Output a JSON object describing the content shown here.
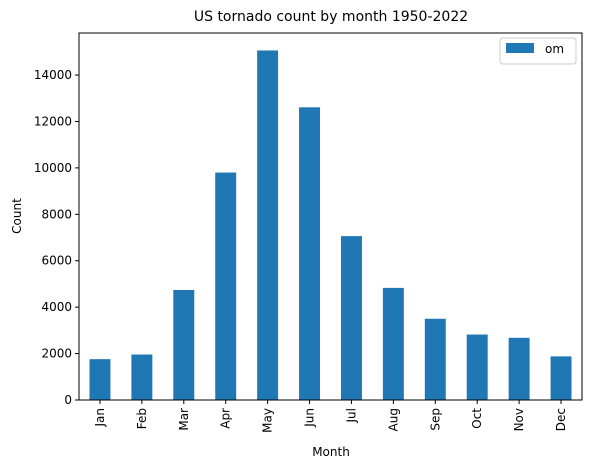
{
  "chart_data": {
    "type": "bar",
    "title": "US tornado count by month 1950-2022",
    "xlabel": "Month",
    "ylabel": "Count",
    "categories": [
      "Jan",
      "Feb",
      "Mar",
      "Apr",
      "May",
      "Jun",
      "Jul",
      "Aug",
      "Sep",
      "Oct",
      "Nov",
      "Dec"
    ],
    "series": [
      {
        "name": "om",
        "color": "#1f77b4",
        "values": [
          1760,
          1960,
          4740,
          9800,
          15060,
          12610,
          7060,
          4830,
          3500,
          2820,
          2680,
          1880
        ]
      }
    ],
    "ylim": [
      0,
      15812
    ],
    "yticks": [
      0,
      2000,
      4000,
      6000,
      8000,
      10000,
      12000,
      14000
    ],
    "ytick_labels": [
      "0",
      "2000",
      "4000",
      "6000",
      "8000",
      "10000",
      "12000",
      "14000"
    ],
    "legend": {
      "position": "top-right",
      "entries": [
        "om"
      ]
    },
    "grid": false
  }
}
